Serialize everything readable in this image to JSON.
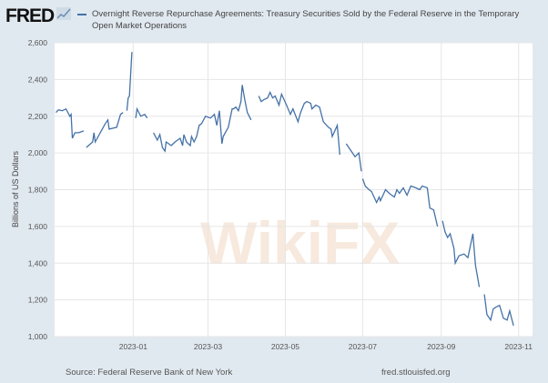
{
  "header": {
    "logo": "FRED",
    "legend_label": "Overnight Reverse Repurchase Agreements: Treasury Securities Sold by the Federal Reserve in the Temporary Open Market Operations"
  },
  "footer": {
    "source": "Source: Federal Reserve Bank of New York",
    "url": "fred.stlouisfed.org"
  },
  "watermark": "WikiFX",
  "colors": {
    "line": "#4572a7",
    "background": "#e1e9f0",
    "plot": "#ffffff"
  },
  "chart_data": {
    "type": "line",
    "title": "Overnight Reverse Repurchase Agreements: Treasury Securities Sold by the Federal Reserve in the Temporary Open Market Operations",
    "xlabel": "",
    "ylabel": "Billions of US Dollars",
    "x_unit": "days since 2023-01-01",
    "xlim": [
      -62,
      315
    ],
    "ylim": [
      1000,
      2600
    ],
    "yticks": [
      1000,
      1200,
      1400,
      1600,
      1800,
      2000,
      2200,
      2400,
      2600
    ],
    "ytick_labels": [
      "1,000",
      "1,200",
      "1,400",
      "1,600",
      "1,800",
      "2,000",
      "2,200",
      "2,400",
      "2,600"
    ],
    "xticks": [
      0,
      59,
      120,
      181,
      243,
      304
    ],
    "xtick_labels": [
      "2023-01",
      "2023-03",
      "2023-05",
      "2023-07",
      "2023-09",
      "2023-11"
    ],
    "grid": true,
    "series": [
      {
        "name": "Overnight Reverse Repurchase Agreements",
        "points": [
          [
            -61,
            2220
          ],
          [
            -59,
            2235
          ],
          [
            -56,
            2230
          ],
          [
            -53,
            2240
          ],
          [
            -50,
            2200
          ],
          [
            -49,
            2210
          ],
          [
            -48,
            2080
          ],
          [
            -46,
            2110
          ],
          [
            -43,
            2110
          ],
          [
            -39,
            2120
          ],
          null,
          [
            -37,
            2030
          ],
          [
            -32,
            2060
          ],
          [
            -31,
            2110
          ],
          [
            -30,
            2060
          ],
          [
            -26,
            2110
          ],
          [
            -22,
            2160
          ],
          [
            -20,
            2180
          ],
          [
            -19,
            2130
          ],
          [
            -13,
            2140
          ],
          [
            -10,
            2210
          ],
          [
            -8,
            2220
          ],
          null,
          [
            -5,
            2230
          ],
          [
            -4,
            2300
          ],
          [
            -3,
            2310
          ],
          [
            -1,
            2550
          ],
          null,
          [
            2,
            2190
          ],
          [
            3,
            2240
          ],
          [
            6,
            2200
          ],
          [
            9,
            2210
          ],
          [
            11,
            2190
          ],
          null,
          [
            16,
            2110
          ],
          [
            19,
            2070
          ],
          [
            21,
            2100
          ],
          [
            23,
            2030
          ],
          [
            25,
            2010
          ],
          [
            26,
            2060
          ],
          [
            30,
            2040
          ],
          [
            33,
            2060
          ],
          [
            37,
            2080
          ],
          [
            39,
            2040
          ],
          [
            40,
            2100
          ],
          [
            42,
            2060
          ],
          [
            45,
            2040
          ],
          [
            46,
            2090
          ],
          [
            48,
            2060
          ],
          [
            50,
            2090
          ],
          [
            52,
            2150
          ],
          [
            54,
            2160
          ],
          [
            57,
            2200
          ],
          [
            61,
            2190
          ],
          [
            64,
            2210
          ],
          [
            66,
            2150
          ],
          [
            68,
            2230
          ],
          [
            70,
            2050
          ],
          [
            71,
            2090
          ],
          [
            75,
            2140
          ],
          [
            78,
            2240
          ],
          [
            79,
            2240
          ],
          [
            81,
            2250
          ],
          [
            83,
            2230
          ],
          [
            85,
            2280
          ],
          [
            86,
            2370
          ],
          [
            88,
            2290
          ],
          [
            90,
            2220
          ],
          [
            93,
            2180
          ],
          null,
          [
            99,
            2310
          ],
          [
            101,
            2280
          ],
          [
            103,
            2290
          ],
          [
            106,
            2300
          ],
          [
            108,
            2330
          ],
          [
            110,
            2300
          ],
          [
            112,
            2310
          ],
          [
            115,
            2260
          ],
          [
            117,
            2320
          ],
          [
            119,
            2290
          ],
          [
            121,
            2260
          ],
          [
            124,
            2210
          ],
          [
            126,
            2240
          ],
          [
            130,
            2170
          ],
          [
            132,
            2220
          ],
          [
            135,
            2270
          ],
          [
            137,
            2280
          ],
          [
            140,
            2270
          ],
          [
            141,
            2240
          ],
          [
            144,
            2260
          ],
          [
            147,
            2250
          ],
          [
            150,
            2170
          ],
          [
            154,
            2140
          ],
          [
            156,
            2130
          ],
          [
            157,
            2090
          ],
          [
            161,
            2150
          ],
          [
            163,
            1990
          ],
          null,
          [
            168,
            2050
          ],
          [
            171,
            2020
          ],
          [
            175,
            1980
          ],
          [
            178,
            2000
          ],
          [
            180,
            1900
          ],
          null,
          [
            181,
            1860
          ],
          [
            183,
            1820
          ],
          [
            186,
            1800
          ],
          [
            188,
            1790
          ],
          [
            192,
            1730
          ],
          [
            194,
            1760
          ],
          [
            195,
            1740
          ],
          [
            197,
            1770
          ],
          [
            199,
            1800
          ],
          [
            202,
            1780
          ],
          [
            206,
            1760
          ],
          [
            208,
            1800
          ],
          [
            210,
            1780
          ],
          [
            213,
            1810
          ],
          [
            216,
            1770
          ],
          [
            219,
            1820
          ],
          [
            223,
            1810
          ],
          [
            226,
            1800
          ],
          [
            228,
            1820
          ],
          [
            232,
            1810
          ],
          [
            234,
            1700
          ],
          [
            237,
            1690
          ],
          [
            240,
            1600
          ],
          null,
          [
            244,
            1630
          ],
          [
            246,
            1570
          ],
          [
            248,
            1540
          ],
          [
            250,
            1560
          ],
          [
            253,
            1480
          ],
          [
            254,
            1400
          ],
          [
            257,
            1440
          ],
          [
            261,
            1450
          ],
          [
            264,
            1430
          ],
          [
            268,
            1560
          ],
          [
            270,
            1390
          ],
          [
            273,
            1270
          ],
          null,
          [
            277,
            1230
          ],
          [
            279,
            1120
          ],
          [
            282,
            1090
          ],
          [
            284,
            1150
          ],
          [
            286,
            1160
          ],
          [
            289,
            1170
          ],
          [
            292,
            1100
          ],
          [
            295,
            1090
          ],
          [
            297,
            1140
          ],
          [
            300,
            1060
          ]
        ]
      }
    ]
  }
}
